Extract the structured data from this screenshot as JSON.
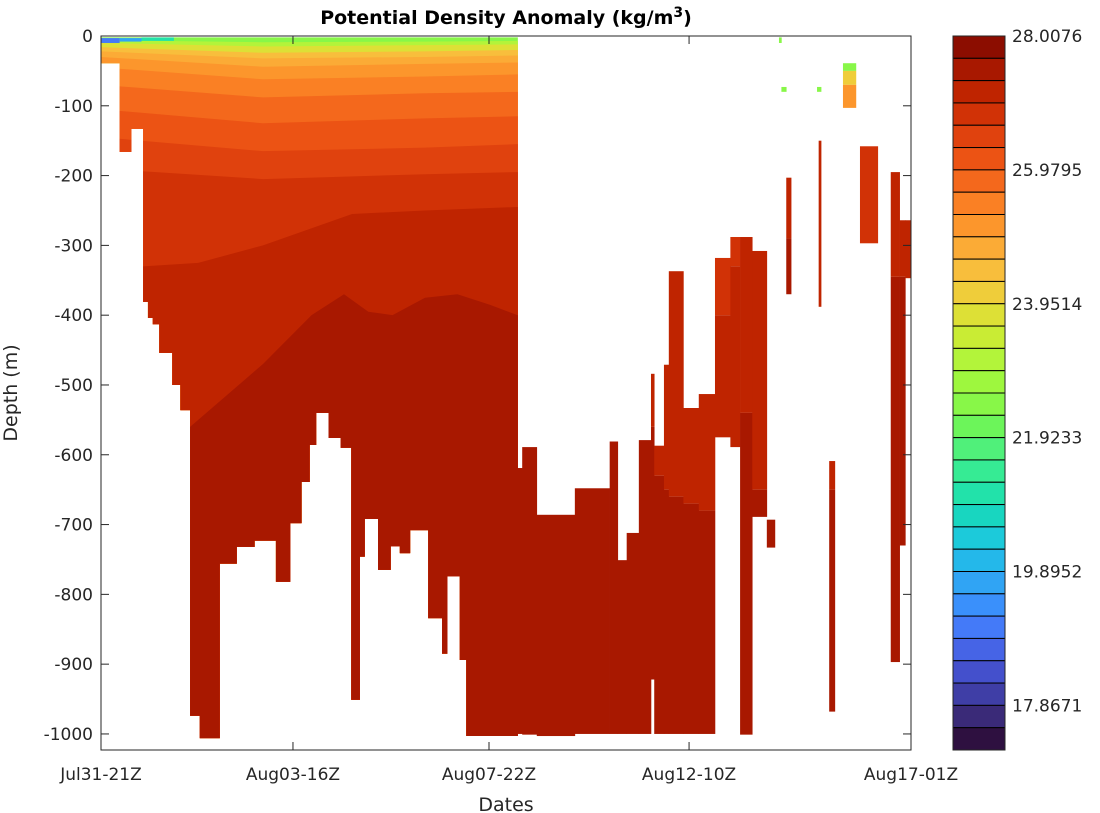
{
  "chart_data": {
    "type": "heatmap",
    "title": {
      "prefix": "Potential Density Anomaly (kg/m",
      "superscript": "3",
      "suffix": ")"
    },
    "xlabel": "Dates",
    "ylabel": "Depth  (m)",
    "xlim": [
      0,
      100
    ],
    "ylim": [
      -1023,
      0
    ],
    "x_ticks": [
      {
        "value": 0,
        "label": "Jul31-21Z"
      },
      {
        "value": 23.7,
        "label": "Aug03-16Z"
      },
      {
        "value": 47.9,
        "label": "Aug07-22Z"
      },
      {
        "value": 72.6,
        "label": "Aug12-10Z"
      },
      {
        "value": 100,
        "label": "Aug17-01Z"
      }
    ],
    "y_ticks": [
      {
        "value": 0,
        "label": "0"
      },
      {
        "value": -100,
        "label": "-100"
      },
      {
        "value": -200,
        "label": "-200"
      },
      {
        "value": -300,
        "label": "-300"
      },
      {
        "value": -400,
        "label": "-400"
      },
      {
        "value": -500,
        "label": "-500"
      },
      {
        "value": -600,
        "label": "-600"
      },
      {
        "value": -700,
        "label": "-700"
      },
      {
        "value": -800,
        "label": "-800"
      },
      {
        "value": -900,
        "label": "-900"
      },
      {
        "value": -1000,
        "label": "-1000"
      }
    ],
    "colorbar": {
      "max": 28.0076,
      "step": 0.338,
      "ticks": [
        {
          "value": 28.0076,
          "label": "28.0076"
        },
        {
          "value": 25.9795,
          "label": "25.9795"
        },
        {
          "value": 23.9514,
          "label": "23.9514"
        },
        {
          "value": 21.9233,
          "label": "21.9233"
        },
        {
          "value": 19.8952,
          "label": "19.8952"
        },
        {
          "value": 17.8671,
          "label": "17.8671"
        }
      ],
      "colors": [
        "#8c0d00",
        "#a81800",
        "#bf2400",
        "#d13206",
        "#e0420e",
        "#ec5314",
        "#f4681c",
        "#fa8024",
        "#fc962c",
        "#fbab36",
        "#f8be3c",
        "#efcd3a",
        "#dde036",
        "#c9ec34",
        "#b3f43a",
        "#9ef73e",
        "#88f748",
        "#6cf55a",
        "#50f07a",
        "#36eb94",
        "#22e2aa",
        "#18d6c0",
        "#1ccada",
        "#24b8ea",
        "#30a4f4",
        "#3a90fb",
        "#447af8",
        "#4664e6",
        "#4450cc",
        "#3f3ea6",
        "#3a2a78",
        "#2e1040"
      ]
    },
    "main_section": {
      "surface_depth": 2,
      "profiles_bottom_depth": [
        [
          0,
          2.3,
          39
        ],
        [
          2.3,
          3.7,
          166
        ],
        [
          3.7,
          5.2,
          133
        ],
        [
          5.2,
          5.8,
          381
        ],
        [
          5.8,
          6.4,
          404
        ],
        [
          6.4,
          7.2,
          413
        ],
        [
          7.2,
          8.8,
          454
        ],
        [
          8.8,
          9.8,
          500
        ],
        [
          9.8,
          11.0,
          536
        ],
        [
          11.0,
          12.2,
          974
        ],
        [
          12.2,
          14.6,
          1006
        ],
        [
          14.6,
          16.7,
          756
        ],
        [
          16.7,
          18.9,
          732
        ],
        [
          18.9,
          21.6,
          723
        ],
        [
          21.6,
          23.3,
          782
        ],
        [
          23.3,
          24.7,
          698
        ],
        [
          24.7,
          25.7,
          639
        ],
        [
          25.7,
          26.5,
          586
        ],
        [
          26.5,
          28.1,
          540
        ],
        [
          28.1,
          29.6,
          576
        ],
        [
          29.6,
          30.9,
          590
        ],
        [
          30.9,
          31.9,
          951
        ],
        [
          31.9,
          32.5,
          746
        ],
        [
          32.5,
          34.2,
          692
        ],
        [
          34.2,
          35.7,
          765
        ],
        [
          35.7,
          36.9,
          731
        ],
        [
          36.9,
          38.1,
          741
        ],
        [
          38.1,
          40.4,
          708
        ],
        [
          40.4,
          42.1,
          834
        ],
        [
          42.1,
          42.7,
          885
        ],
        [
          42.7,
          44.3,
          774
        ],
        [
          44.3,
          45.1,
          894
        ],
        [
          45.1,
          51.4,
          1003
        ]
      ],
      "layers": [
        {
          "density": 22.43,
          "top": [
            [
              0,
              0
            ],
            [
              51.4,
              0
            ]
          ]
        },
        {
          "density": 23.1,
          "top": [
            [
              0,
              6
            ],
            [
              20,
              9
            ],
            [
              40,
              8
            ],
            [
              51.4,
              7
            ]
          ]
        },
        {
          "density": 23.78,
          "top": [
            [
              0,
              10
            ],
            [
              20,
              15
            ],
            [
              40,
              13
            ],
            [
              51.4,
              12
            ]
          ]
        },
        {
          "density": 24.46,
          "top": [
            [
              0,
              16
            ],
            [
              20,
              24
            ],
            [
              40,
              22
            ],
            [
              51.4,
              20
            ]
          ]
        },
        {
          "density": 24.79,
          "top": [
            [
              0,
              22
            ],
            [
              20,
              32
            ],
            [
              40,
              30
            ],
            [
              51.4,
              28
            ]
          ]
        },
        {
          "density": 25.13,
          "top": [
            [
              0,
              30
            ],
            [
              20,
              44
            ],
            [
              40,
              40
            ],
            [
              51.4,
              38
            ]
          ]
        },
        {
          "density": 25.47,
          "top": [
            [
              0,
              45
            ],
            [
              20,
              62
            ],
            [
              40,
              58
            ],
            [
              51.4,
              55
            ]
          ]
        },
        {
          "density": 25.81,
          "top": [
            [
              0,
              70
            ],
            [
              20,
              88
            ],
            [
              40,
              82
            ],
            [
              51.4,
              80
            ]
          ]
        },
        {
          "density": 26.15,
          "top": [
            [
              0,
              105
            ],
            [
              20,
              125
            ],
            [
              40,
              118
            ],
            [
              51.4,
              115
            ]
          ]
        },
        {
          "density": 26.49,
          "top": [
            [
              0,
              145
            ],
            [
              20,
              165
            ],
            [
              40,
              160
            ],
            [
              51.4,
              155
            ]
          ]
        },
        {
          "density": 26.82,
          "top": [
            [
              0,
              190
            ],
            [
              20,
              205
            ],
            [
              40,
              198
            ],
            [
              51.4,
              195
            ]
          ]
        },
        {
          "density": 27.16,
          "top": [
            [
              5.2,
              330
            ],
            [
              12,
              325
            ],
            [
              20,
              300
            ],
            [
              31,
              255
            ],
            [
              40,
              250
            ],
            [
              51.4,
              245
            ]
          ]
        },
        {
          "density": 27.5,
          "top": [
            [
              11,
              560
            ],
            [
              20,
              470
            ],
            [
              26,
              400
            ],
            [
              30,
              370
            ],
            [
              33,
              395
            ],
            [
              36,
              400
            ],
            [
              40,
              375
            ],
            [
              44,
              370
            ],
            [
              48,
              385
            ],
            [
              51.4,
              400
            ]
          ]
        }
      ],
      "surface_patches": [
        [
          0,
          2.3,
          3,
          10,
          19.04
        ],
        [
          2.3,
          5,
          3,
          8,
          19.72
        ],
        [
          5,
          9,
          2,
          7,
          21.08
        ]
      ]
    },
    "columns": [
      [
        51.4,
        52.0,
        619,
        1000,
        27.5,
        27.5,
        0
      ],
      [
        52.0,
        53.8,
        589,
        1001,
        27.5,
        27.5,
        0
      ],
      [
        53.8,
        58.5,
        686,
        1003,
        27.5,
        27.5,
        0
      ],
      [
        58.5,
        62.8,
        648,
        1000,
        27.5,
        27.5,
        0
      ],
      [
        62.8,
        63.8,
        581,
        1000,
        27.5,
        27.5,
        0
      ],
      [
        63.8,
        64.9,
        751,
        1000,
        27.5,
        27.5,
        0
      ],
      [
        64.9,
        66.4,
        712,
        1000,
        27.5,
        27.5,
        0
      ],
      [
        66.4,
        67.9,
        579,
        1000,
        27.5,
        27.5,
        0
      ],
      [
        67.9,
        68.3,
        484,
        922,
        27.16,
        27.5,
        560
      ],
      [
        68.3,
        69.5,
        587,
        1000,
        27.16,
        27.5,
        630
      ],
      [
        69.5,
        70.1,
        471,
        1000,
        27.16,
        27.5,
        650
      ],
      [
        70.1,
        71.9,
        337,
        1000,
        27.16,
        27.5,
        660
      ],
      [
        71.9,
        73.8,
        533,
        1000,
        27.16,
        27.5,
        670
      ],
      [
        73.8,
        75.8,
        513,
        1000,
        27.16,
        27.5,
        680
      ],
      [
        75.8,
        77.7,
        318,
        575,
        26.82,
        27.16,
        400
      ],
      [
        77.7,
        78.9,
        288,
        589,
        26.82,
        27.16,
        330
      ],
      [
        78.9,
        80.4,
        288,
        1001,
        27.16,
        27.5,
        540
      ],
      [
        80.4,
        82.2,
        308,
        689,
        27.16,
        27.5,
        650
      ],
      [
        82.2,
        83.2,
        693,
        733,
        27.5,
        27.5,
        0
      ],
      [
        84.6,
        85.2,
        203,
        370,
        27.16,
        27.5,
        290
      ],
      [
        88.6,
        88.9,
        150,
        388,
        27.16,
        27.16,
        0
      ],
      [
        89.9,
        90.6,
        609,
        968,
        27.16,
        27.5,
        650
      ],
      [
        93.7,
        95.9,
        158,
        297,
        26.82,
        26.82,
        0
      ],
      [
        97.5,
        98.6,
        195,
        897,
        27.16,
        27.5,
        345
      ],
      [
        98.6,
        99.3,
        264,
        730,
        27.16,
        27.5,
        345
      ],
      [
        99.3,
        100,
        264,
        347,
        27.16,
        27.16,
        0
      ],
      [
        91.6,
        93.2,
        39,
        50,
        22.43,
        22.43,
        0
      ],
      [
        91.6,
        93.2,
        50,
        70,
        24.12,
        24.12,
        0
      ],
      [
        91.6,
        93.2,
        70,
        103,
        25.13,
        25.13,
        0
      ],
      [
        84.0,
        84.6,
        73,
        80,
        22.43,
        22.43,
        0
      ],
      [
        88.4,
        88.9,
        73,
        80,
        22.43,
        22.43,
        0
      ],
      [
        83.7,
        84.0,
        2,
        10,
        22.43,
        22.43,
        0
      ]
    ]
  }
}
